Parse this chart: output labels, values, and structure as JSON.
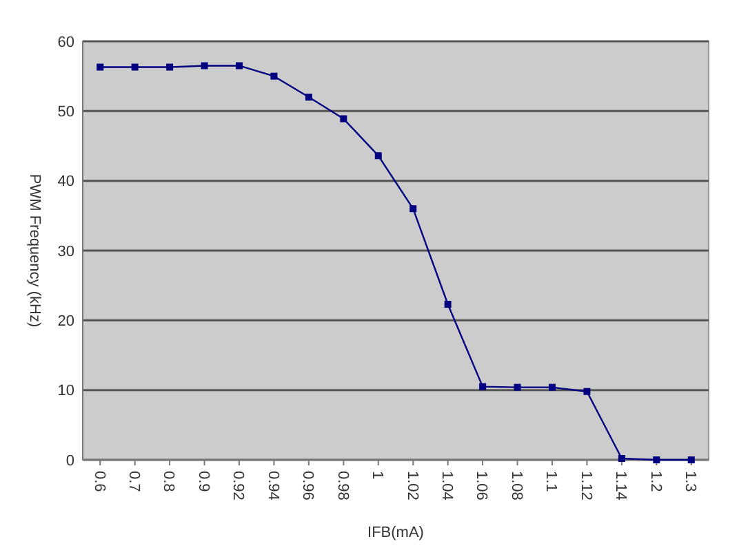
{
  "chart_data": {
    "type": "line",
    "xlabel": "IFB(mA)",
    "ylabel": "PWM Frequency (kHz)",
    "categories": [
      "0.6",
      "0.7",
      "0.8",
      "0.9",
      "0.92",
      "0.94",
      "0.96",
      "0.98",
      "1",
      "1.02",
      "1.04",
      "1.06",
      "1.08",
      "1.1",
      "1.12",
      "1.14",
      "1.2",
      "1.3"
    ],
    "series": [
      {
        "color": "#000080",
        "values": [
          56.3,
          56.3,
          56.3,
          56.5,
          56.5,
          55,
          52,
          48.9,
          43.6,
          36,
          22.3,
          10.5,
          10.4,
          10.4,
          9.8,
          0.2,
          0,
          0
        ]
      }
    ],
    "ylim": [
      0,
      60
    ],
    "yticks": [
      0,
      10,
      20,
      30,
      40,
      50,
      60
    ],
    "grid": "y",
    "marker": "square",
    "line_style": "solid"
  }
}
